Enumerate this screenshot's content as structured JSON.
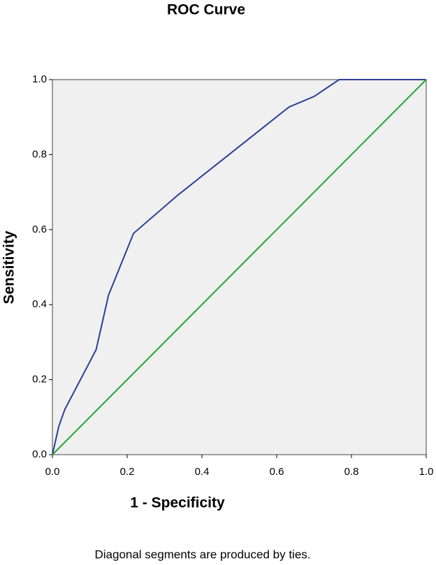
{
  "chart_data": {
    "type": "line",
    "title": "ROC Curve",
    "xlabel": "1 - Specificity",
    "ylabel": "Sensitivity",
    "footnote": "Diagonal segments are produced by ties.",
    "series": [
      {
        "color": "#2a3f97",
        "x": [
          0,
          0.017,
          0.033,
          0.117,
          0.15,
          0.217,
          0.333,
          0.633,
          0.7,
          0.767,
          1
        ],
        "values": [
          0,
          0.075,
          0.12,
          0.28,
          0.425,
          0.59,
          0.69,
          0.927,
          0.955,
          1,
          1
        ]
      },
      {
        "color": "#21a637",
        "x": [
          0,
          1
        ],
        "values": [
          0,
          1
        ]
      }
    ],
    "xlim": [
      0,
      1
    ],
    "ylim": [
      0,
      1
    ],
    "xticks": [
      {
        "value": 0,
        "label": "0.0"
      },
      0.2,
      0.4,
      0.6,
      0.8,
      {
        "value": 1,
        "label": "1.0"
      }
    ],
    "yticks": [
      {
        "value": 0,
        "label": "0.0"
      },
      0.2,
      0.4,
      0.6,
      0.8,
      {
        "value": 1,
        "label": "1.0"
      }
    ],
    "background": "#f0f0f0"
  }
}
